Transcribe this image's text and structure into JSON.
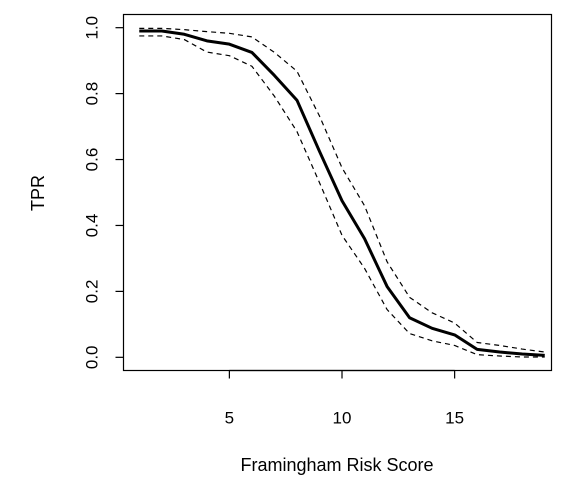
{
  "chart_data": {
    "type": "line",
    "xlabel": "Framingham Risk Score",
    "ylabel": "TPR",
    "xlim": [
      0.3,
      19.3
    ],
    "ylim": [
      -0.04,
      1.04
    ],
    "x_ticks": [
      5,
      10,
      15
    ],
    "x_tick_labels": [
      "5",
      "10",
      "15"
    ],
    "y_ticks": [
      0.0,
      0.2,
      0.4,
      0.6,
      0.8,
      1.0
    ],
    "y_tick_labels": [
      "0.0",
      "0.2",
      "0.4",
      "0.6",
      "0.8",
      "1.0"
    ],
    "grid": false,
    "x": [
      1,
      2,
      3,
      4,
      5,
      6,
      7,
      8,
      9,
      10,
      11,
      12,
      13,
      14,
      15,
      16,
      17,
      18,
      19
    ],
    "series": [
      {
        "role": "estimate",
        "style": "solid",
        "values": [
          0.99,
          0.99,
          0.98,
          0.96,
          0.95,
          0.925,
          0.855,
          0.78,
          0.625,
          0.475,
          0.36,
          0.215,
          0.12,
          0.088,
          0.068,
          0.024,
          0.016,
          0.01,
          0.006
        ]
      },
      {
        "role": "upper-bound",
        "style": "dashed",
        "values": [
          0.998,
          0.998,
          0.994,
          0.988,
          0.983,
          0.972,
          0.925,
          0.868,
          0.732,
          0.575,
          0.46,
          0.29,
          0.182,
          0.135,
          0.104,
          0.045,
          0.036,
          0.025,
          0.016
        ]
      },
      {
        "role": "lower-bound",
        "style": "dashed",
        "values": [
          0.975,
          0.975,
          0.964,
          0.926,
          0.915,
          0.883,
          0.792,
          0.685,
          0.53,
          0.37,
          0.27,
          0.145,
          0.072,
          0.05,
          0.036,
          0.008,
          0.004,
          0.001,
          0.001
        ]
      }
    ],
    "colors": {
      "line": "#000000",
      "axis": "#000000",
      "background": "#ffffff"
    }
  }
}
